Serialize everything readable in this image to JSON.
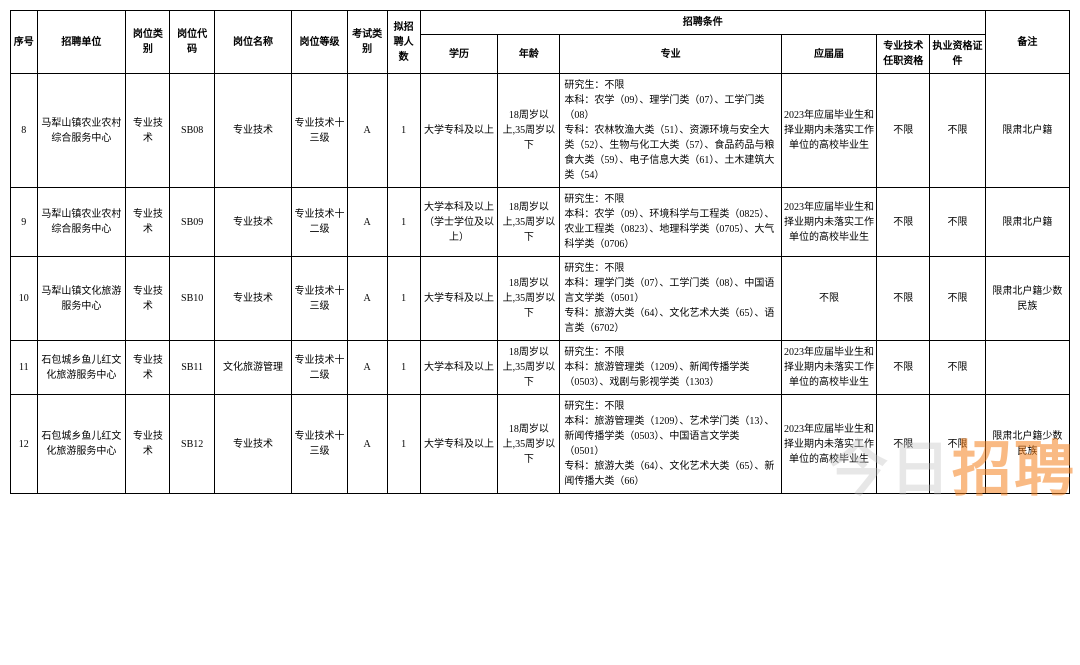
{
  "columns": {
    "seq": "序号",
    "unit": "招聘单位",
    "cat": "岗位类别",
    "code": "岗位代码",
    "name": "岗位名称",
    "level": "岗位等级",
    "exam": "考试类别",
    "num": "拟招聘人数",
    "cond": "招聘条件",
    "edu": "学历",
    "age": "年龄",
    "major": "专业",
    "grad": "应届届",
    "tech": "专业技术任职资格",
    "cert": "执业资格证件",
    "note": "备注"
  },
  "rows": [
    {
      "seq": "8",
      "unit": "马犁山镇农业农村综合服务中心",
      "cat": "专业技术",
      "code": "SB08",
      "name": "专业技术",
      "level": "专业技术十三级",
      "exam": "A",
      "num": "1",
      "edu": "大学专科及以上",
      "age": "18周岁以上,35周岁以下",
      "major": "研究生：不限\n本科：农学（09）、理学门类（07）、工学门类（08）\n专科：农林牧渔大类（51）、资源环境与安全大类（52）、生物与化工大类（57）、食品药品与粮食大类（59）、电子信息大类（61）、土木建筑大类（54）",
      "grad": "2023年应届毕业生和择业期内未落实工作单位的高校毕业生",
      "tech": "不限",
      "cert": "不限",
      "note": "限肃北户籍"
    },
    {
      "seq": "9",
      "unit": "马犁山镇农业农村综合服务中心",
      "cat": "专业技术",
      "code": "SB09",
      "name": "专业技术",
      "level": "专业技术十二级",
      "exam": "A",
      "num": "1",
      "edu": "大学本科及以上（学士学位及以上）",
      "age": "18周岁以上,35周岁以下",
      "major": "研究生：不限\n本科：农学（09）、环境科学与工程类（0825）、农业工程类（0823）、地理科学类（0705）、大气科学类（0706）",
      "grad": "2023年应届毕业生和择业期内未落实工作单位的高校毕业生",
      "tech": "不限",
      "cert": "不限",
      "note": "限肃北户籍"
    },
    {
      "seq": "10",
      "unit": "马犁山镇文化旅游服务中心",
      "cat": "专业技术",
      "code": "SB10",
      "name": "专业技术",
      "level": "专业技术十三级",
      "exam": "A",
      "num": "1",
      "edu": "大学专科及以上",
      "age": "18周岁以上,35周岁以下",
      "major": "研究生：不限\n本科：理学门类（07）、工学门类（08）、中国语言文学类（0501）\n专科：旅游大类（64）、文化艺术大类（65）、语言类（6702）",
      "grad": "不限",
      "tech": "不限",
      "cert": "不限",
      "note": "限肃北户籍少数民族"
    },
    {
      "seq": "11",
      "unit": "石包城乡鱼儿红文化旅游服务中心",
      "cat": "专业技术",
      "code": "SB11",
      "name": "文化旅游管理",
      "level": "专业技术十二级",
      "exam": "A",
      "num": "1",
      "edu": "大学本科及以上",
      "age": "18周岁以上,35周岁以下",
      "major": "研究生：不限\n本科：旅游管理类（1209）、新闻传播学类（0503）、戏剧与影视学类（1303）",
      "grad": "2023年应届毕业生和择业期内未落实工作单位的高校毕业生",
      "tech": "不限",
      "cert": "不限",
      "note": ""
    },
    {
      "seq": "12",
      "unit": "石包城乡鱼儿红文化旅游服务中心",
      "cat": "专业技术",
      "code": "SB12",
      "name": "专业技术",
      "level": "专业技术十三级",
      "exam": "A",
      "num": "1",
      "edu": "大学专科及以上",
      "age": "18周岁以上,35周岁以下",
      "major": "研究生：不限\n本科：旅游管理类（1209）、艺术学门类（13）、新闻传播学类（0503）、中国语言文学类（0501）\n专科：旅游大类（64）、文化艺术大类（65）、新闻传播大类（66）",
      "grad": "2023年应届毕业生和择业期内未落实工作单位的高校毕业生",
      "tech": "不限",
      "cert": "不限",
      "note": "限肃北户籍少数民族"
    }
  ],
  "watermark": {
    "a": "今日",
    "b": "招聘"
  }
}
